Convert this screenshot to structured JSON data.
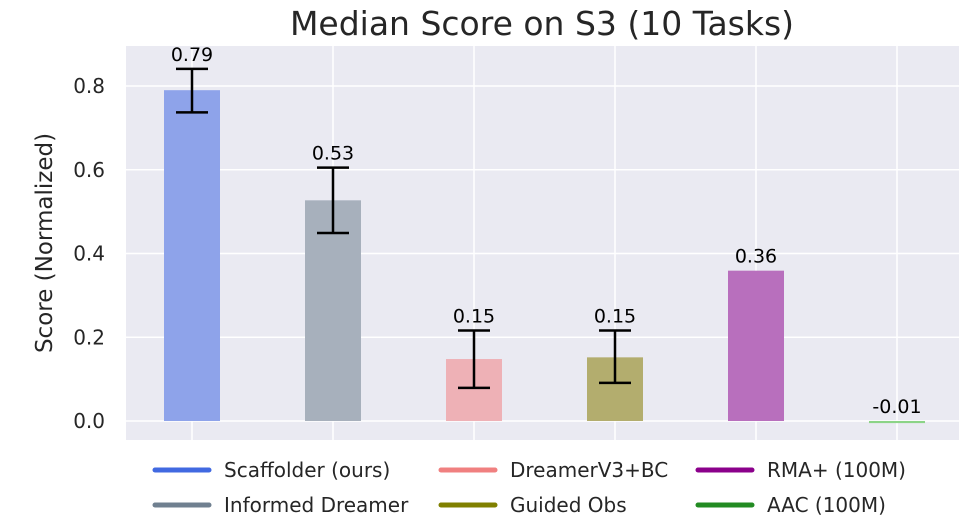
{
  "chart_data": {
    "type": "bar",
    "title": "Median Score on S3 (10 Tasks)",
    "xlabel": "",
    "ylabel": "Score (Normalized)",
    "ylim": [
      -0.05,
      0.88
    ],
    "yticks": [
      0.0,
      0.2,
      0.4,
      0.6,
      0.8
    ],
    "ytick_labels": [
      "0.0",
      "0.2",
      "0.4",
      "0.6",
      "0.8"
    ],
    "grid": true,
    "legend_position": "bottom",
    "categories": [
      "Scaffolder (ours)",
      "Informed Dreamer",
      "DreamerV3+BC",
      "Guided Obs",
      "RMA+ (100M)",
      "AAC (100M)"
    ],
    "values": [
      0.79,
      0.53,
      0.15,
      0.15,
      0.36,
      -0.01
    ],
    "value_labels": [
      "0.79",
      "0.53",
      "0.15",
      "0.15",
      "0.36",
      "-0.01"
    ],
    "bar_values": [
      0.79,
      0.527,
      0.148,
      0.152,
      0.359,
      -0.005
    ],
    "error_low": [
      0.737,
      0.449,
      0.079,
      0.091,
      null,
      null
    ],
    "error_high": [
      0.841,
      0.605,
      0.216,
      0.216,
      null,
      null
    ],
    "bar_colors": [
      "#8ea3ea",
      "#a7b0bc",
      "#eeb1b6",
      "#b3ad6e",
      "#b86fbd",
      "#8cd487"
    ],
    "legend_colors": [
      "#4169e1",
      "#708090",
      "#f08080",
      "#808000",
      "#8b008b",
      "#228b22"
    ]
  }
}
